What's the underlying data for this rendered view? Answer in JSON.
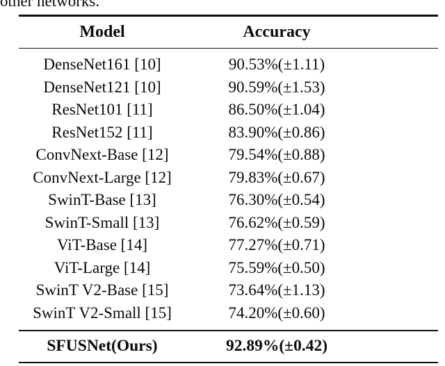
{
  "caption_fragment": "other networks.",
  "table": {
    "headers": {
      "model": "Model",
      "accuracy": "Accuracy"
    },
    "rows": [
      {
        "model": "DenseNet161 [10]",
        "accuracy": "90.53%(±1.11)"
      },
      {
        "model": "DenseNet121 [10]",
        "accuracy": "90.59%(±1.53)"
      },
      {
        "model": "ResNet101 [11]",
        "accuracy": "86.50%(±1.04)"
      },
      {
        "model": "ResNet152 [11]",
        "accuracy": "83.90%(±0.86)"
      },
      {
        "model": "ConvNext-Base [12]",
        "accuracy": "79.54%(±0.88)"
      },
      {
        "model": "ConvNext-Large [12]",
        "accuracy": "79.83%(±0.67)"
      },
      {
        "model": "SwinT-Base [13]",
        "accuracy": "76.30%(±0.54)"
      },
      {
        "model": "SwinT-Small [13]",
        "accuracy": "76.62%(±0.59)"
      },
      {
        "model": "ViT-Base [14]",
        "accuracy": "77.27%(±0.71)"
      },
      {
        "model": "ViT-Large [14]",
        "accuracy": "75.59%(±0.50)"
      },
      {
        "model": "SwinT V2-Base [15]",
        "accuracy": "73.64%(±1.13)"
      },
      {
        "model": "SwinT V2-Small [15]",
        "accuracy": "74.20%(±0.60)"
      }
    ],
    "highlight_row": {
      "model": "SFUSNet(Ours)",
      "accuracy": "92.89%(±0.42)"
    }
  },
  "colors": {
    "text": "#0a0a0a",
    "rule": "#0e0e0e",
    "background": "#ffffff"
  }
}
